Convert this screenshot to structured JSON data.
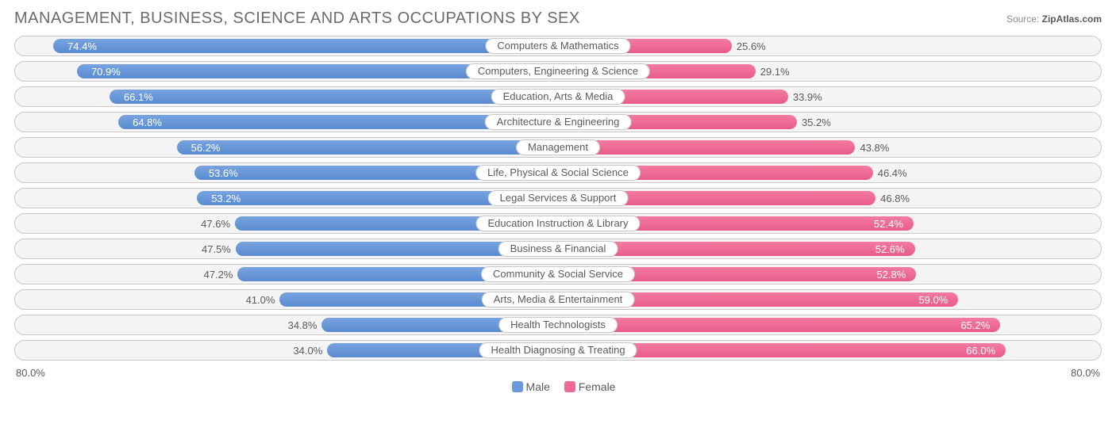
{
  "title": "MANAGEMENT, BUSINESS, SCIENCE AND ARTS OCCUPATIONS BY SEX",
  "source_prefix": "Source: ",
  "source_name": "ZipAtlas.com",
  "axis_max_pct": 80.0,
  "axis_label_left": "80.0%",
  "axis_label_right": "80.0%",
  "legend": {
    "male": "Male",
    "female": "Female"
  },
  "colors": {
    "male": "#6a98d8",
    "female": "#ee6a94",
    "border": "#c8c8c8",
    "background": "#ffffff",
    "track": "#f4f4f4",
    "text": "#5a5a5a"
  },
  "categories": [
    {
      "label": "Computers & Mathematics",
      "male": 74.4,
      "female": 25.6
    },
    {
      "label": "Computers, Engineering & Science",
      "male": 70.9,
      "female": 29.1
    },
    {
      "label": "Education, Arts & Media",
      "male": 66.1,
      "female": 33.9
    },
    {
      "label": "Architecture & Engineering",
      "male": 64.8,
      "female": 35.2
    },
    {
      "label": "Management",
      "male": 56.2,
      "female": 43.8
    },
    {
      "label": "Life, Physical & Social Science",
      "male": 53.6,
      "female": 46.4
    },
    {
      "label": "Legal Services & Support",
      "male": 53.2,
      "female": 46.8
    },
    {
      "label": "Education Instruction & Library",
      "male": 47.6,
      "female": 52.4
    },
    {
      "label": "Business & Financial",
      "male": 47.5,
      "female": 52.6
    },
    {
      "label": "Community & Social Service",
      "male": 47.2,
      "female": 52.8
    },
    {
      "label": "Arts, Media & Entertainment",
      "male": 41.0,
      "female": 59.0
    },
    {
      "label": "Health Technologists",
      "male": 34.8,
      "female": 65.2
    },
    {
      "label": "Health Diagnosing & Treating",
      "male": 34.0,
      "female": 66.0
    }
  ]
}
